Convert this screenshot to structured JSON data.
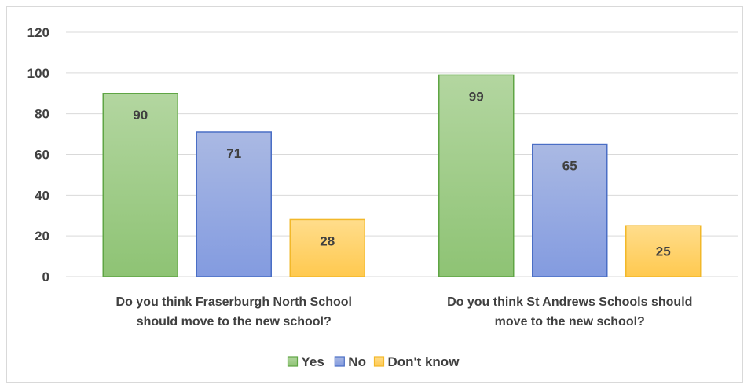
{
  "chart_data": {
    "type": "bar",
    "categories": [
      [
        "Do you think Fraserburgh North School",
        "should move to the new school?"
      ],
      [
        "Do you think St Andrews Schools should",
        "move to the new school?"
      ]
    ],
    "series": [
      {
        "name": "Yes",
        "values": [
          90,
          99
        ],
        "fill_top": "#b3d6a0",
        "fill_bottom": "#8ec374",
        "stroke": "#5fa544"
      },
      {
        "name": "No",
        "values": [
          71,
          65
        ],
        "fill_top": "#aab9e3",
        "fill_bottom": "#839be0",
        "stroke": "#4a6ec5"
      },
      {
        "name": "Don't know",
        "values": [
          28,
          25
        ],
        "fill_top": "#ffdd8c",
        "fill_bottom": "#ffc94f",
        "stroke": "#f2b82a"
      }
    ],
    "yticks": [
      0,
      20,
      40,
      60,
      80,
      100,
      120
    ],
    "ylim": [
      0,
      120
    ],
    "grid": true,
    "legend_position": "bottom",
    "title": "",
    "xlabel": "",
    "ylabel": ""
  }
}
